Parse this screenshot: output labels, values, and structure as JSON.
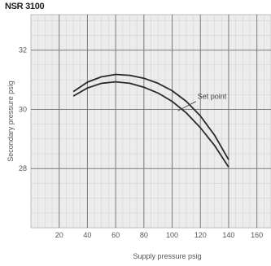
{
  "chart_data": {
    "type": "line",
    "title": "NSR 3100",
    "xlabel": "Supply pressure psig",
    "ylabel": "Secondary pressure psig",
    "xlim": [
      0,
      170
    ],
    "ylim": [
      26,
      33.2
    ],
    "x_ticks": [
      20,
      40,
      60,
      80,
      100,
      120,
      140,
      160
    ],
    "y_ticks": [
      28,
      30,
      32
    ],
    "grid": true,
    "annotations": [
      {
        "text": "Set point",
        "x": 118,
        "y": 30.35
      }
    ],
    "series": [
      {
        "name": "",
        "x": [
          30,
          40,
          50,
          60,
          70,
          80,
          90,
          100,
          110,
          120,
          130,
          140
        ],
        "y": [
          30.6,
          30.92,
          31.1,
          31.18,
          31.15,
          31.05,
          30.88,
          30.63,
          30.27,
          29.78,
          29.13,
          28.3
        ]
      },
      {
        "name": "",
        "x": [
          30,
          40,
          50,
          60,
          70,
          80,
          90,
          100,
          110,
          120,
          130,
          140
        ],
        "y": [
          30.45,
          30.72,
          30.88,
          30.93,
          30.88,
          30.75,
          30.55,
          30.27,
          29.88,
          29.38,
          28.78,
          28.05
        ]
      }
    ],
    "colors": {
      "grid": "#7a7a7a",
      "curve": "#2a2a2a",
      "background": "#ececec",
      "frame": "#bdbdbd"
    }
  }
}
